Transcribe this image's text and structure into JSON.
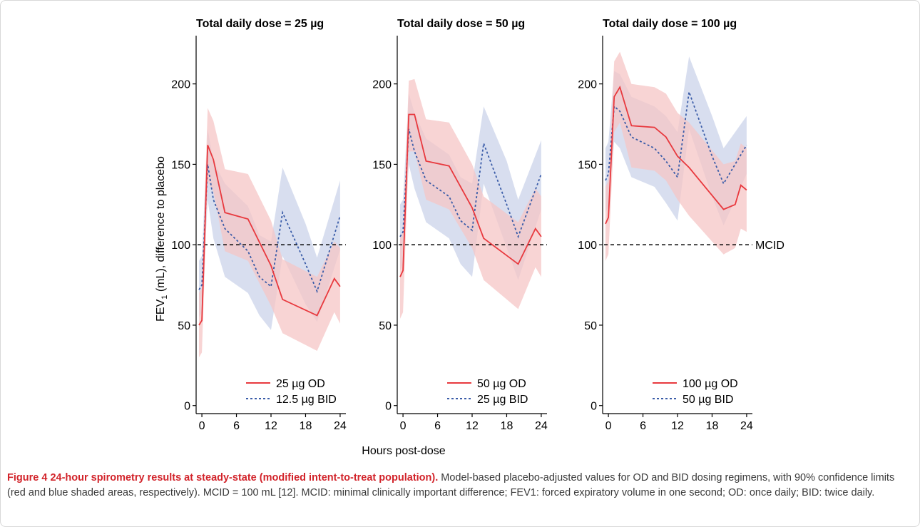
{
  "caption": {
    "label": "Figure 4",
    "title": "24-hour spirometry results at steady-state (modified intent-to-treat population).",
    "text": "Model-based placebo-adjusted values for OD and BID dosing regimens, with 90% confidence limits (red and blue shaded areas, respectively). MCID = 100 mL [12]. MCID: minimal clinically important difference; FEV1: forced expiratory volume in one second; OD: once daily; BID: twice daily."
  },
  "colors": {
    "od": "#e8393e",
    "bid": "#3a5ca8",
    "od_band": "#f6c6c6",
    "bid_band": "#c3cde6",
    "reference": "#000000"
  },
  "chart_data": {
    "type": "line",
    "ylabel": {
      "prefix": "FEV",
      "subscript": "1",
      "suffix": " (mL), difference to placebo"
    },
    "xlabel": "Hours post-dose",
    "ylim": [
      -5,
      230
    ],
    "xlim": [
      -1,
      25
    ],
    "yticks": [
      0,
      50,
      100,
      150,
      200
    ],
    "xticks": [
      0,
      6,
      12,
      18,
      24
    ],
    "reference_line": {
      "y": 100,
      "label": "MCID"
    },
    "panels": [
      {
        "title": "Total daily dose = 25 µg",
        "series": [
          {
            "name": "25 µg OD",
            "style": "solid",
            "x": [
              -0.5,
              0,
              1,
              2,
              4,
              8,
              12,
              14,
              20,
              23,
              24
            ],
            "y": [
              50,
              53,
              162,
              153,
              120,
              116,
              87,
              66,
              56,
              79,
              74
            ],
            "lower": [
              30,
              33,
              140,
              133,
              96,
              90,
              62,
              45,
              34,
              58,
              51
            ],
            "upper": [
              70,
              73,
              185,
              177,
              147,
              144,
              115,
              91,
              80,
              102,
              98
            ]
          },
          {
            "name": "12.5 µg BID",
            "style": "dashed",
            "x": [
              -0.5,
              0,
              1,
              2,
              4,
              8,
              10,
              12,
              14,
              18,
              20,
              24
            ],
            "y": [
              72,
              75,
              150,
              128,
              110,
              96,
              80,
              74,
              120,
              88,
              71,
              118
            ],
            "lower": [
              55,
              58,
              128,
              104,
              80,
              70,
              56,
              47,
              93,
              63,
              52,
              97
            ],
            "upper": [
              90,
              93,
              172,
              152,
              138,
              124,
              106,
              102,
              148,
              113,
              92,
              140
            ]
          }
        ]
      },
      {
        "title": "Total daily dose = 50 µg",
        "series": [
          {
            "name": "50 µg OD",
            "style": "solid",
            "x": [
              -0.5,
              0,
              1,
              2,
              4,
              8,
              12,
              14,
              20,
              23,
              24
            ],
            "y": [
              80,
              84,
              181,
              181,
              152,
              149,
              123,
              104,
              88,
              110,
              105
            ],
            "lower": [
              54,
              58,
              158,
              158,
              128,
              122,
              98,
              78,
              60,
              86,
              80
            ],
            "upper": [
              104,
              108,
              202,
              203,
              178,
              176,
              150,
              130,
              114,
              135,
              130
            ]
          },
          {
            "name": "25 µg BID",
            "style": "dashed",
            "x": [
              -0.5,
              0,
              1,
              2,
              4,
              8,
              10,
              12,
              14,
              18,
              20,
              24
            ],
            "y": [
              105,
              108,
              172,
              158,
              140,
              130,
              115,
              109,
              163,
              125,
              105,
              144
            ],
            "lower": [
              84,
              88,
              150,
              135,
              114,
              104,
              88,
              80,
              138,
              98,
              78,
              122
            ],
            "upper": [
              125,
              128,
              194,
              182,
              166,
              156,
              142,
              138,
              186,
              152,
              128,
              165
            ]
          }
        ]
      },
      {
        "title": "Total daily dose = 100 µg",
        "series": [
          {
            "name": "100 µg OD",
            "style": "solid",
            "x": [
              -0.5,
              0,
              1,
              2,
              4,
              8,
              10,
              12,
              14,
              20,
              22,
              23,
              24
            ],
            "y": [
              113,
              117,
              192,
              198,
              174,
              173,
              167,
              155,
              148,
              122,
              125,
              137,
              134
            ],
            "lower": [
              90,
              94,
              170,
              176,
              148,
              146,
              140,
              128,
              118,
              94,
              98,
              110,
              108
            ],
            "upper": [
              136,
              140,
              214,
              220,
              200,
              198,
              194,
              182,
              176,
              150,
              152,
              163,
              160
            ]
          },
          {
            "name": "50 µg BID",
            "style": "dashed",
            "x": [
              -0.5,
              0,
              1,
              2,
              4,
              8,
              10,
              12,
              14,
              18,
              20,
              24
            ],
            "y": [
              140,
              144,
              186,
              183,
              167,
              160,
              152,
              142,
              195,
              155,
              138,
              162
            ],
            "lower": [
              120,
              124,
              164,
              160,
              142,
              136,
              126,
              115,
              172,
              130,
              112,
              144
            ],
            "upper": [
              160,
              164,
              208,
              206,
              192,
              186,
              180,
              170,
              217,
              180,
              160,
              180
            ]
          }
        ]
      }
    ]
  }
}
